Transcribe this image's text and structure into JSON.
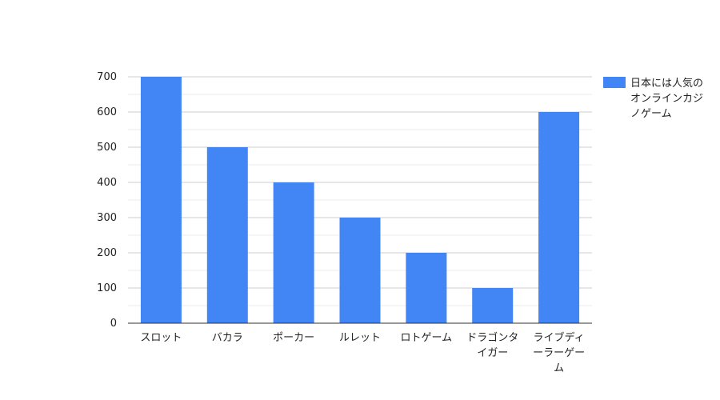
{
  "chart_data": {
    "type": "bar",
    "categories": [
      [
        "スロット"
      ],
      [
        "バカラ"
      ],
      [
        "ポーカー"
      ],
      [
        "ルレット"
      ],
      [
        "ロトゲーム"
      ],
      [
        "ドラゴンタ",
        "イガー"
      ],
      [
        "ライブディ",
        "ーラーゲー",
        "ム"
      ]
    ],
    "series": [
      {
        "name_lines": [
          "日本には人気の",
          "オンラインカジ",
          "ノゲーム"
        ],
        "color": "#4285f4",
        "values": [
          700,
          500,
          400,
          300,
          200,
          100,
          600
        ]
      }
    ],
    "ylim": [
      0,
      700
    ],
    "yticks": [
      0,
      100,
      200,
      300,
      400,
      500,
      600,
      700
    ],
    "grid": true,
    "legend_position": "right",
    "gridline_color": "#cccccc",
    "minor_gridline_color": "#ebebeb",
    "axis_color": "#333333"
  }
}
